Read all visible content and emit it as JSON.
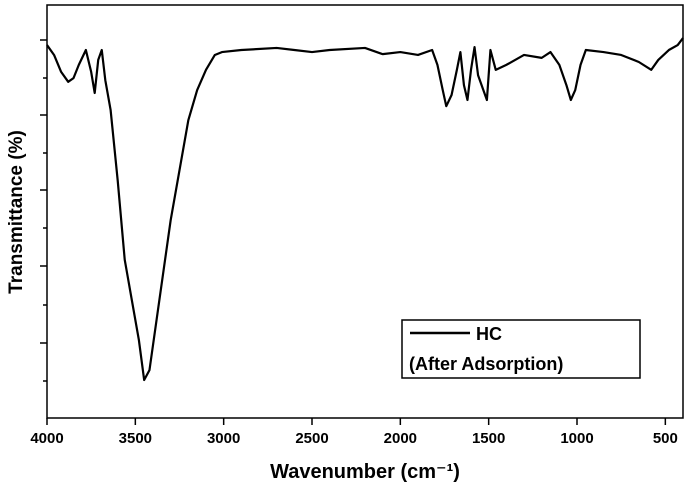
{
  "chart_data": {
    "type": "line",
    "xlabel": "Wavenumber (cm⁻¹)",
    "ylabel": "Transmittance (%)",
    "xlim": [
      4000,
      400
    ],
    "xticks": [
      4000,
      3500,
      3000,
      2500,
      2000,
      1500,
      1000,
      500
    ],
    "ylim": [
      0,
      100
    ],
    "x": [
      4000,
      3960,
      3920,
      3880,
      3850,
      3820,
      3780,
      3750,
      3730,
      3710,
      3690,
      3670,
      3640,
      3600,
      3560,
      3520,
      3480,
      3450,
      3420,
      3380,
      3340,
      3300,
      3250,
      3200,
      3150,
      3100,
      3050,
      3010,
      2900,
      2700,
      2600,
      2500,
      2400,
      2200,
      2100,
      2000,
      1900,
      1820,
      1790,
      1760,
      1740,
      1710,
      1680,
      1660,
      1640,
      1620,
      1600,
      1580,
      1560,
      1530,
      1510,
      1490,
      1460,
      1400,
      1300,
      1200,
      1150,
      1100,
      1060,
      1035,
      1010,
      980,
      950,
      850,
      750,
      650,
      580,
      540,
      480,
      430,
      400
    ],
    "series": [
      {
        "name": "HC",
        "color": "#000000",
        "values": [
          90.3,
          87.9,
          83.8,
          81.4,
          82.3,
          85.5,
          89.1,
          83.8,
          78.7,
          86.7,
          89.1,
          81.8,
          74.6,
          57.6,
          38.3,
          28.6,
          18.9,
          9.2,
          11.6,
          23.7,
          35.8,
          47.9,
          60.0,
          72.1,
          79.4,
          84.3,
          87.9,
          88.6,
          89.1,
          89.6,
          89.1,
          88.6,
          89.1,
          89.6,
          88.1,
          88.6,
          87.9,
          89.1,
          85.5,
          79.4,
          75.5,
          78.2,
          84.3,
          88.6,
          80.6,
          77.0,
          84.3,
          89.8,
          83.0,
          79.4,
          77.0,
          89.1,
          84.3,
          85.5,
          87.9,
          87.2,
          88.6,
          85.5,
          80.6,
          77.0,
          79.4,
          85.5,
          89.1,
          88.6,
          87.9,
          86.2,
          84.3,
          86.7,
          89.1,
          90.3,
          92.0
        ]
      }
    ],
    "legend_subtitle": "(After Adsorption)"
  }
}
